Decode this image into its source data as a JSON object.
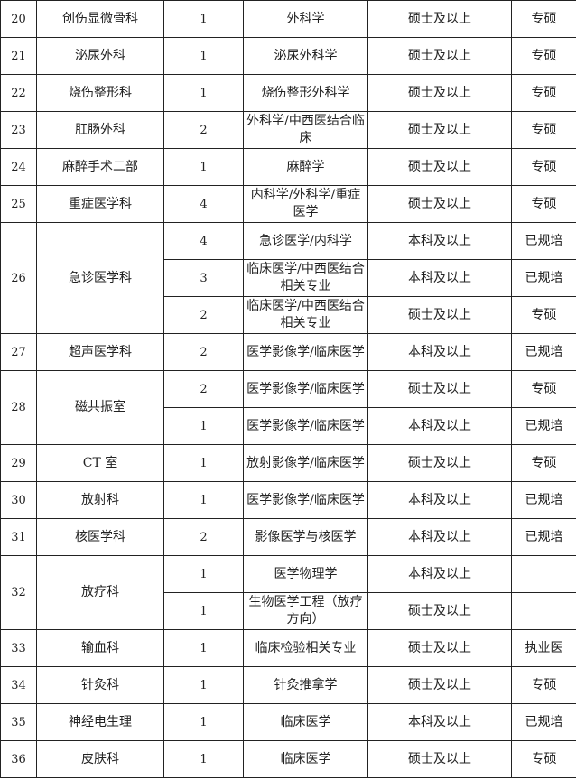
{
  "table": {
    "rows": [
      {
        "no": "20",
        "dept": "创伤显微骨科",
        "entries": [
          {
            "count": "1",
            "major": "外科学",
            "degree": "硕士及以上",
            "req": "专硕"
          }
        ]
      },
      {
        "no": "21",
        "dept": "泌尿外科",
        "entries": [
          {
            "count": "1",
            "major": "泌尿外科学",
            "degree": "硕士及以上",
            "req": "专硕"
          }
        ]
      },
      {
        "no": "22",
        "dept": "烧伤整形科",
        "entries": [
          {
            "count": "1",
            "major": "烧伤整形外科学",
            "degree": "硕士及以上",
            "req": "专硕"
          }
        ]
      },
      {
        "no": "23",
        "dept": "肛肠外科",
        "entries": [
          {
            "count": "2",
            "major": "外科学/中西医结合临床",
            "degree": "硕士及以上",
            "req": "专硕"
          }
        ]
      },
      {
        "no": "24",
        "dept": "麻醉手术二部",
        "entries": [
          {
            "count": "1",
            "major": "麻醉学",
            "degree": "硕士及以上",
            "req": "专硕"
          }
        ]
      },
      {
        "no": "25",
        "dept": "重症医学科",
        "entries": [
          {
            "count": "4",
            "major": "内科学/外科学/重症医学",
            "degree": "硕士及以上",
            "req": "专硕"
          }
        ]
      },
      {
        "no": "26",
        "dept": "急诊医学科",
        "entries": [
          {
            "count": "4",
            "major": "急诊医学/内科学",
            "degree": "本科及以上",
            "req": "已规培"
          },
          {
            "count": "3",
            "major": "临床医学/中西医结合相关专业",
            "degree": "本科及以上",
            "req": "已规培"
          },
          {
            "count": "2",
            "major": "临床医学/中西医结合相关专业",
            "degree": "硕士及以上",
            "req": "专硕"
          }
        ]
      },
      {
        "no": "27",
        "dept": "超声医学科",
        "entries": [
          {
            "count": "2",
            "major": "医学影像学/临床医学",
            "degree": "本科及以上",
            "req": "已规培"
          }
        ]
      },
      {
        "no": "28",
        "dept": "磁共振室",
        "entries": [
          {
            "count": "2",
            "major": "医学影像学/临床医学",
            "degree": "硕士及以上",
            "req": "专硕"
          },
          {
            "count": "1",
            "major": "医学影像学/临床医学",
            "degree": "本科及以上",
            "req": "已规培"
          }
        ]
      },
      {
        "no": "29",
        "dept": "CT 室",
        "entries": [
          {
            "count": "1",
            "major": "放射影像学/临床医学",
            "degree": "硕士及以上",
            "req": "专硕"
          }
        ]
      },
      {
        "no": "30",
        "dept": "放射科",
        "entries": [
          {
            "count": "1",
            "major": "医学影像学/临床医学",
            "degree": "本科及以上",
            "req": "已规培"
          }
        ]
      },
      {
        "no": "31",
        "dept": "核医学科",
        "entries": [
          {
            "count": "2",
            "major": "影像医学与核医学",
            "degree": "本科及以上",
            "req": "已规培"
          }
        ]
      },
      {
        "no": "32",
        "dept": "放疗科",
        "entries": [
          {
            "count": "1",
            "major": "医学物理学",
            "degree": "本科及以上",
            "req": ""
          },
          {
            "count": "1",
            "major": "生物医学工程（放疗方向）",
            "degree": "硕士及以上",
            "req": ""
          }
        ]
      },
      {
        "no": "33",
        "dept": "输血科",
        "entries": [
          {
            "count": "1",
            "major": "临床检验相关专业",
            "degree": "硕士及以上",
            "req": "执业医"
          }
        ]
      },
      {
        "no": "34",
        "dept": "针灸科",
        "entries": [
          {
            "count": "1",
            "major": "针灸推拿学",
            "degree": "硕士及以上",
            "req": "专硕"
          }
        ]
      },
      {
        "no": "35",
        "dept": "神经电生理",
        "entries": [
          {
            "count": "1",
            "major": "临床医学",
            "degree": "本科及以上",
            "req": "已规培"
          }
        ]
      },
      {
        "no": "36",
        "dept": "皮肤科",
        "entries": [
          {
            "count": "1",
            "major": "临床医学",
            "degree": "硕士及以上",
            "req": "专硕"
          }
        ]
      }
    ]
  }
}
